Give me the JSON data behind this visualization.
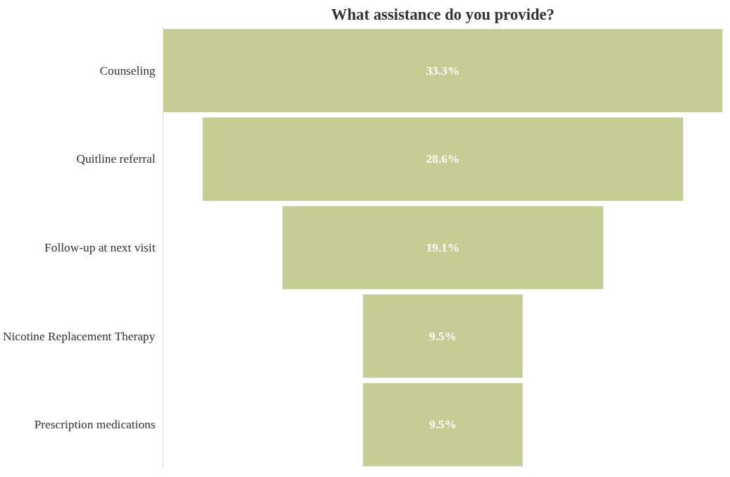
{
  "chart_data": {
    "type": "other",
    "title": "What assistance do you provide?",
    "categories": [
      "Counseling",
      "Quitline referral",
      "Follow-up at next visit",
      "Nicotine Replacement Therapy",
      "Prescription medications"
    ],
    "values": [
      33.3,
      28.6,
      19.1,
      9.5,
      9.5
    ],
    "value_labels": [
      "33.3%",
      "28.6%",
      "19.1%",
      "9.5%",
      "9.5%"
    ],
    "color": "#c5cc94"
  }
}
